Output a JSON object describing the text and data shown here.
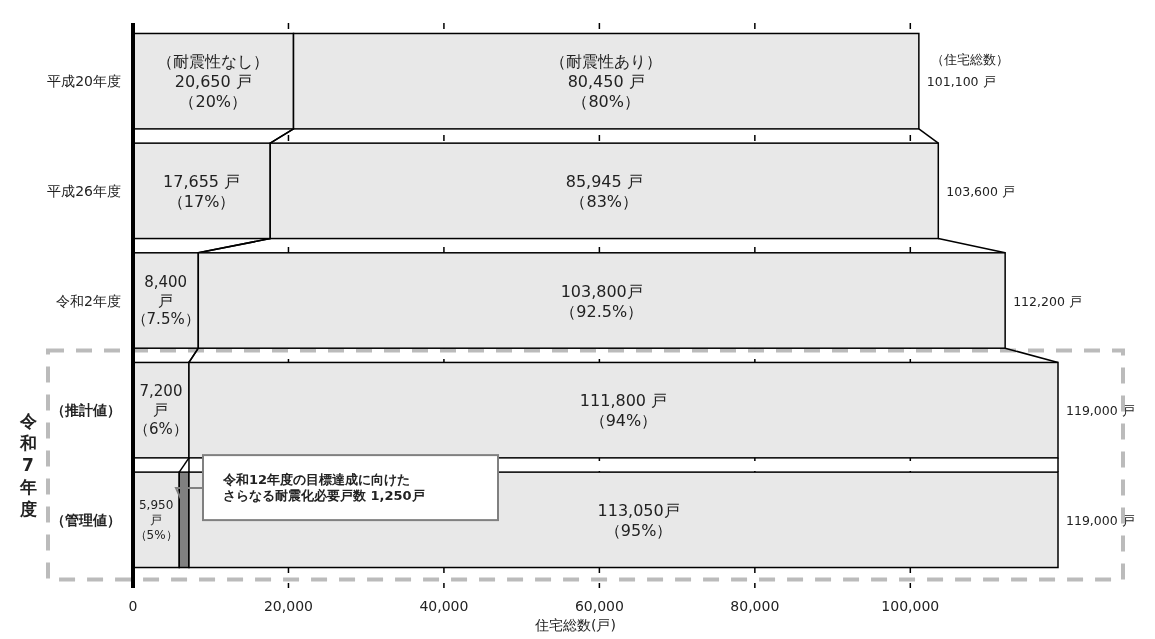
{
  "chart_data": {
    "type": "bar",
    "orientation": "horizontal",
    "stacked": true,
    "xlabel": "住宅総数(戸)",
    "categories": [
      "平成20年度",
      "平成26年度",
      "令和2年度",
      "（推計値）",
      "（管理値）"
    ],
    "series": [
      {
        "name": "（耐震性なし）",
        "color": "#e8e8e8",
        "values": [
          20650,
          17655,
          8400,
          7200,
          5950
        ],
        "value_labels": [
          "20,650 戸（20%）",
          "17,655 戸（17%）",
          "8,400戸（7.5%）",
          "7,200戸（6%）",
          "5,950戸（5%）"
        ]
      },
      {
        "color": "#808080",
        "values": [
          null,
          null,
          null,
          null,
          1250
        ]
      },
      {
        "name": "（耐震性あり）",
        "color": "#e8e8e8",
        "values": [
          80450,
          85945,
          103800,
          111800,
          111800
        ],
        "value_labels": [
          "80,450 戸（80%）",
          "85,945 戸（83%）",
          "103,800戸（92.5%）",
          "111,800 戸（94%）",
          null
        ]
      }
    ],
    "totals": [
      "101,100 戸",
      "103,600 戸",
      "112,200 戸",
      "119,000 戸",
      "119,000 戸"
    ],
    "xlim": [
      0,
      119000
    ],
    "xticks": [
      0,
      {
        "value": 20000,
        "label": "20,000"
      },
      {
        "value": 40000,
        "label": "40,000"
      },
      {
        "value": 60000,
        "label": "60,000"
      },
      {
        "value": 80000,
        "label": "80,000"
      },
      {
        "value": 100000,
        "label": "100,000"
      }
    ],
    "grid": "x",
    "annotations": [
      "（住宅総数）",
      "令和7年度",
      "令和12年度の目標達成に向けたさらなる耐震化必要戸数 1,250戸",
      "113,050戸（95%）"
    ]
  }
}
